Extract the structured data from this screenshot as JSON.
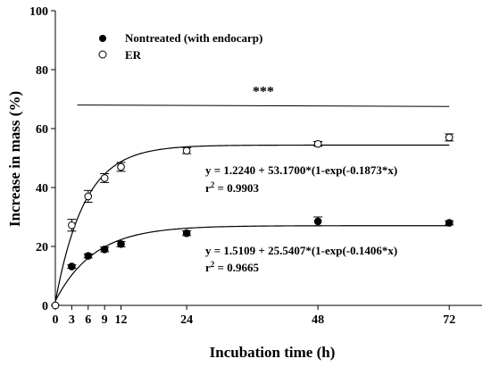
{
  "chart_data": {
    "type": "scatter",
    "xlabel": "Incubation time (h)",
    "ylabel": "Increase in mass (%)",
    "xlim": [
      0,
      78
    ],
    "ylim": [
      0,
      100
    ],
    "xticks": [
      0,
      3,
      6,
      9,
      12,
      24,
      48,
      72
    ],
    "yticks": [
      0,
      20,
      40,
      60,
      80,
      100
    ],
    "grid": false,
    "legend_placement": "top-left",
    "series": [
      {
        "name": "Nontreated (with endocarp)",
        "marker": "filled-circle",
        "x": [
          0,
          3,
          6,
          9,
          12,
          24,
          48,
          72
        ],
        "y": [
          0,
          13.2,
          16.8,
          19.0,
          20.8,
          24.5,
          28.5,
          28.0
        ],
        "err": [
          0,
          0.6,
          0.7,
          0.8,
          0.9,
          0.8,
          1.5,
          0.7
        ],
        "fit": {
          "a": 1.5109,
          "b": 25.5407,
          "k": 0.1406
        },
        "equation": "y = 1.5109 + 25.5407*(1-exp(-0.1406*x)",
        "r2_label": "r",
        "r2_exp": "2",
        "r2_value": " = 0.9665"
      },
      {
        "name": "ER",
        "marker": "open-circle",
        "x": [
          0,
          3,
          6,
          9,
          12,
          24,
          48,
          72
        ],
        "y": [
          0,
          27.2,
          37.0,
          43.2,
          47.0,
          52.5,
          54.8,
          57.0
        ],
        "err": [
          0,
          2.0,
          2.0,
          1.5,
          1.5,
          1.0,
          0.8,
          1.2
        ],
        "fit": {
          "a": 1.224,
          "b": 53.17,
          "k": 0.1873
        },
        "equation": "y = 1.2240 + 53.1700*(1-exp(-0.1873*x)",
        "r2_label": "r",
        "r2_exp": "2",
        "r2_value": " = 0.9903"
      }
    ],
    "significance": {
      "text": "***",
      "line_x_range": [
        4,
        72
      ],
      "line_y_range": [
        68,
        67.5
      ]
    }
  }
}
